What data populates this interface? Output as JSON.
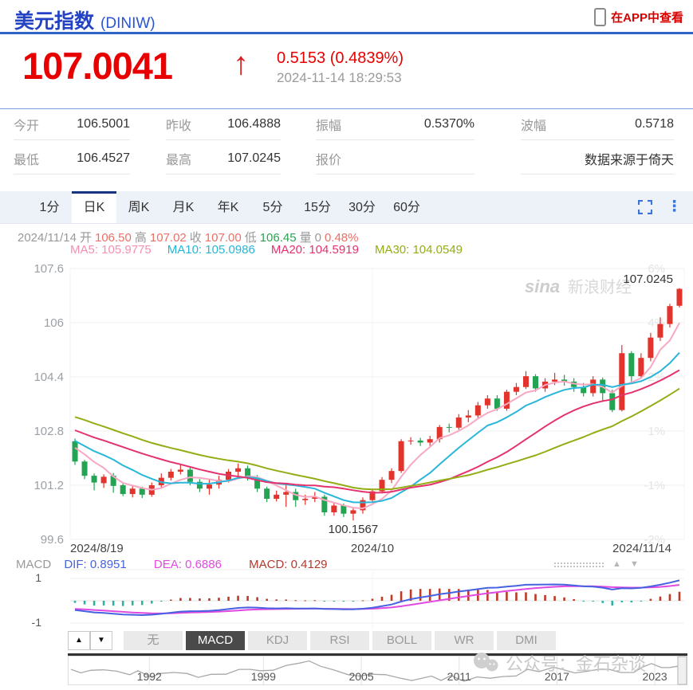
{
  "header": {
    "title": "美元指数",
    "code": "(DINIW)",
    "app_link": "在APP中查看"
  },
  "quote": {
    "price": "107.0041",
    "arrow": "↑",
    "change": "0.5153 (0.4839%)",
    "time": "2024-11-14 18:29:53"
  },
  "stats": {
    "rows": [
      {
        "label": "今开",
        "value": "106.5001"
      },
      {
        "label": "昨收",
        "value": "106.4888"
      },
      {
        "label": "振幅",
        "value": "0.5370%"
      },
      {
        "label": "波幅",
        "value": "0.5718"
      },
      {
        "label": "最低",
        "value": "106.4527"
      },
      {
        "label": "最高",
        "value": "107.0245"
      },
      {
        "label": "报价",
        "value": ""
      },
      {
        "label": "",
        "value": "数据来源于倚天"
      }
    ]
  },
  "period_tabs": {
    "items": [
      "1分",
      "日K",
      "周K",
      "月K",
      "年K",
      "5分",
      "15分",
      "30分",
      "60分"
    ],
    "active_index": 1
  },
  "ohlc_bar": {
    "date": "2024/11/14",
    "pairs": [
      {
        "label": "开",
        "value": "106.50",
        "color": "#ee6f66"
      },
      {
        "label": "高",
        "value": "107.02",
        "color": "#ee6f66"
      },
      {
        "label": "收",
        "value": "107.00",
        "color": "#ee6f66"
      },
      {
        "label": "低",
        "value": "106.45",
        "color": "#2ea356"
      },
      {
        "label": "量",
        "value": "0",
        "color": "#999999"
      }
    ],
    "pct": {
      "value": "0.48%",
      "color": "#ee6f66"
    }
  },
  "ma_bar": {
    "items": [
      {
        "text": "MA5: 105.9775",
        "color": "#f48fb1"
      },
      {
        "text": "MA10: 105.0986",
        "color": "#27b5d6"
      },
      {
        "text": "MA20: 104.5919",
        "color": "#e5326e"
      },
      {
        "text": "MA30: 104.0549",
        "color": "#93ad14"
      }
    ]
  },
  "macd_bar": {
    "label": "MACD",
    "dif": "DIF: 0.8951",
    "dea": "DEA: 0.6886",
    "macd": "MACD: 0.4129"
  },
  "indicator_tabs": {
    "up": "▲",
    "down": "▼",
    "items": [
      "无",
      "MACD",
      "KDJ",
      "RSI",
      "BOLL",
      "WR",
      "DMI"
    ],
    "active_index": 1
  },
  "watermarks": {
    "sina_en": "sina",
    "sina_cn": "新浪财经",
    "wechat": "公众号：金石杂谈"
  },
  "colors": {
    "up": "#e2342c",
    "down": "#22a453",
    "ma5": "#f8a8c2",
    "ma10": "#29b6d8",
    "ma20": "#e5326e",
    "ma30": "#93ad14",
    "dif_line": "#4762e0",
    "dea_line": "#e04ae0",
    "hist_pos": "#bd3a27",
    "hist_neg": "#2fb3a0",
    "grid": "#efefef",
    "axis_left": "#9aa0a6",
    "axis_right": "#e4e4e4",
    "x_label": "#444444",
    "annotation": "#333333",
    "nav_line": "#a8a8a8",
    "nav_grid": "#e2e2e2",
    "nav_year": "#555555"
  },
  "chart_data": [
    {
      "type": "candlestick",
      "title": "美元指数 日K",
      "x_labels": [
        "2024/8/19",
        "2024/10",
        "2024/11/14"
      ],
      "x_label_indices": [
        0,
        31,
        63
      ],
      "y_left_ticks": [
        "107.6",
        "106",
        "104.4",
        "102.8",
        "101.2",
        "99.6"
      ],
      "y_right_ticks": [
        "6%",
        "4%",
        "2%",
        "1%",
        "-1%",
        "-2%"
      ],
      "y_top_value": 107.6,
      "y_step": 1.6,
      "annotations": {
        "high": "107.0245",
        "high_index": 63,
        "low": "100.1567",
        "low_index": 29
      },
      "ma_periods": [
        5,
        10,
        20,
        30
      ],
      "pre_closes": [
        104.25,
        104.18,
        104.3,
        104.22,
        104.1,
        103.98,
        103.9,
        104.02,
        103.86,
        103.72,
        103.76,
        103.6,
        103.42,
        103.22,
        103.1,
        102.92,
        103.02,
        102.82,
        102.92,
        103.1,
        103.2,
        103.02,
        102.82,
        102.62,
        102.52,
        102.62,
        102.46,
        102.4,
        102.32,
        102.46
      ],
      "candles": [
        [
          102.5,
          101.9,
          102.58,
          101.8
        ],
        [
          101.9,
          101.48,
          101.95,
          101.38
        ],
        [
          101.48,
          101.28,
          101.55,
          101.05
        ],
        [
          101.26,
          101.45,
          101.52,
          101.12
        ],
        [
          101.48,
          101.18,
          101.56,
          100.98
        ],
        [
          101.2,
          100.94,
          101.26,
          100.88
        ],
        [
          100.94,
          101.1,
          101.18,
          100.84
        ],
        [
          101.1,
          100.92,
          101.16,
          100.82
        ],
        [
          100.92,
          101.2,
          101.28,
          100.86
        ],
        [
          101.2,
          101.42,
          101.55,
          101.12
        ],
        [
          101.42,
          101.6,
          101.68,
          101.34
        ],
        [
          101.6,
          101.66,
          101.8,
          101.52
        ],
        [
          101.66,
          101.3,
          101.74,
          101.2
        ],
        [
          101.3,
          101.1,
          101.38,
          101.0
        ],
        [
          101.1,
          101.22,
          101.4,
          100.92
        ],
        [
          101.22,
          101.36,
          101.48,
          101.1
        ],
        [
          101.36,
          101.6,
          101.68,
          101.28
        ],
        [
          101.6,
          101.7,
          101.84,
          101.46
        ],
        [
          101.7,
          101.44,
          101.78,
          101.34
        ],
        [
          101.44,
          101.1,
          101.5,
          101.0
        ],
        [
          101.1,
          100.8,
          101.16,
          100.7
        ],
        [
          100.8,
          100.92,
          101.04,
          100.72
        ],
        [
          100.92,
          101.0,
          101.24,
          100.56
        ],
        [
          101.0,
          100.76,
          101.1,
          100.56
        ],
        [
          100.76,
          100.8,
          100.92,
          100.62
        ],
        [
          100.8,
          100.86,
          101.0,
          100.7
        ],
        [
          100.86,
          100.4,
          100.92,
          100.3
        ],
        [
          100.4,
          100.6,
          100.7,
          100.3
        ],
        [
          100.6,
          100.36,
          100.66,
          100.26
        ],
        [
          100.36,
          100.46,
          100.56,
          100.16
        ],
        [
          100.46,
          100.76,
          100.84,
          100.36
        ],
        [
          100.76,
          101.02,
          101.1,
          100.7
        ],
        [
          101.02,
          101.36,
          101.44,
          100.96
        ],
        [
          101.36,
          101.62,
          101.7,
          101.26
        ],
        [
          101.62,
          102.5,
          102.56,
          101.56
        ],
        [
          102.5,
          102.52,
          102.62,
          102.4
        ],
        [
          102.52,
          102.46,
          102.6,
          102.36
        ],
        [
          102.46,
          102.56,
          102.66,
          102.36
        ],
        [
          102.56,
          102.92,
          102.98,
          102.46
        ],
        [
          102.92,
          102.9,
          103.02,
          102.76
        ],
        [
          102.9,
          103.2,
          103.3,
          102.84
        ],
        [
          103.2,
          103.26,
          103.42,
          103.06
        ],
        [
          103.26,
          103.56,
          103.66,
          103.16
        ],
        [
          103.56,
          103.76,
          103.86,
          103.46
        ],
        [
          103.76,
          103.46,
          103.86,
          103.4
        ],
        [
          103.46,
          103.96,
          104.02,
          103.4
        ],
        [
          103.96,
          104.1,
          104.22,
          103.86
        ],
        [
          104.1,
          104.42,
          104.57,
          104.04
        ],
        [
          104.42,
          104.06,
          104.48,
          103.96
        ],
        [
          104.06,
          104.26,
          104.36,
          103.96
        ],
        [
          104.26,
          104.32,
          104.52,
          104.16
        ],
        [
          104.32,
          104.26,
          104.46,
          104.14
        ],
        [
          104.26,
          104.1,
          104.36,
          103.96
        ],
        [
          104.1,
          103.92,
          104.22,
          103.82
        ],
        [
          103.92,
          104.32,
          104.42,
          103.82
        ],
        [
          104.32,
          103.92,
          104.38,
          103.66
        ],
        [
          103.92,
          103.42,
          104.02,
          103.36
        ],
        [
          103.42,
          105.1,
          105.34,
          103.38
        ],
        [
          105.1,
          104.42,
          105.16,
          104.26
        ],
        [
          104.42,
          104.96,
          105.1,
          104.36
        ],
        [
          104.96,
          105.56,
          105.7,
          104.86
        ],
        [
          105.56,
          105.96,
          106.16,
          105.46
        ],
        [
          105.96,
          106.49,
          106.56,
          105.86
        ],
        [
          106.5,
          107.0,
          107.02,
          106.45
        ]
      ]
    },
    {
      "type": "macd",
      "y_ticks": [
        "1",
        "-1"
      ],
      "dif": 0.8951,
      "dea": 0.6886,
      "macd": 0.4129,
      "ema_fast": 12,
      "ema_slow": 26,
      "signal": 9
    },
    {
      "type": "line",
      "name": "long-term-navigator",
      "year_ticks": [
        1992,
        1999,
        2005,
        2011,
        2017,
        2023
      ],
      "x_domain": [
        1987,
        2025
      ],
      "y_domain": [
        70,
        122
      ],
      "points": [
        [
          1987.2,
          97
        ],
        [
          1987.8,
          92
        ],
        [
          1988.4,
          95
        ],
        [
          1989.2,
          99
        ],
        [
          1990.0,
          93
        ],
        [
          1990.8,
          88
        ],
        [
          1991.3,
          94
        ],
        [
          1992.1,
          83
        ],
        [
          1992.7,
          88
        ],
        [
          1993.5,
          93
        ],
        [
          1994.3,
          88
        ],
        [
          1995.0,
          82
        ],
        [
          1995.8,
          86
        ],
        [
          1996.7,
          89
        ],
        [
          1997.5,
          97
        ],
        [
          1998.2,
          100
        ],
        [
          1998.8,
          94
        ],
        [
          1999.6,
          98
        ],
        [
          2000.4,
          106
        ],
        [
          2001.2,
          114
        ],
        [
          2001.8,
          116
        ],
        [
          2002.5,
          107
        ],
        [
          2003.3,
          96
        ],
        [
          2004.2,
          88
        ],
        [
          2004.9,
          82
        ],
        [
          2005.6,
          89
        ],
        [
          2006.5,
          85
        ],
        [
          2007.3,
          81
        ],
        [
          2008.1,
          72
        ],
        [
          2008.6,
          79
        ],
        [
          2009.3,
          82
        ],
        [
          2009.9,
          75
        ],
        [
          2010.5,
          83
        ],
        [
          2011.3,
          73
        ],
        [
          2012.1,
          80
        ],
        [
          2012.9,
          80
        ],
        [
          2013.7,
          81
        ],
        [
          2014.5,
          85
        ],
        [
          2015.2,
          97
        ],
        [
          2015.9,
          95
        ],
        [
          2016.8,
          102
        ],
        [
          2017.4,
          99
        ],
        [
          2018.1,
          89
        ],
        [
          2018.9,
          96
        ],
        [
          2019.7,
          98
        ],
        [
          2020.2,
          100
        ],
        [
          2020.9,
          90
        ],
        [
          2021.7,
          93
        ],
        [
          2022.3,
          103
        ],
        [
          2022.8,
          113
        ],
        [
          2023.4,
          101
        ],
        [
          2023.9,
          104
        ],
        [
          2024.4,
          104
        ],
        [
          2024.95,
          106.5
        ]
      ]
    }
  ]
}
